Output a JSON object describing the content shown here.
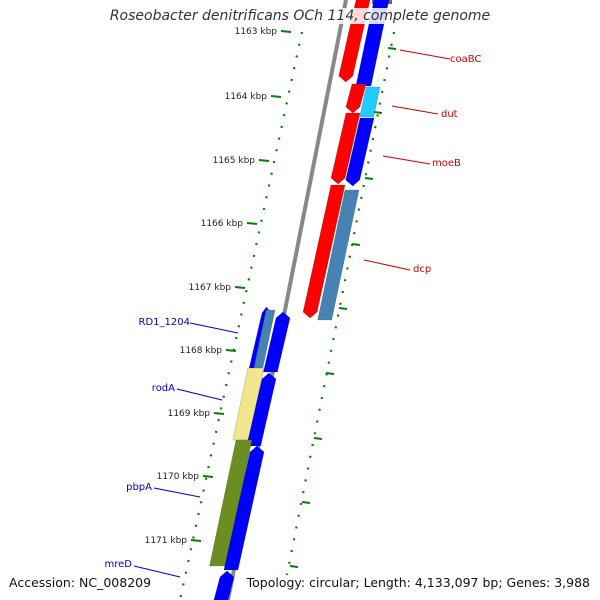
{
  "title": "Roseobacter denitrificans OCh 114, complete genome",
  "accession": "Accession: NC_008209",
  "summary": "Topology: circular; Length: 4,133,097 bp; Genes: 3,988",
  "ticks": [
    {
      "label": "1163 kbp"
    },
    {
      "label": "1164 kbp"
    },
    {
      "label": "1165 kbp"
    },
    {
      "label": "1166 kbp"
    },
    {
      "label": "1167 kbp"
    },
    {
      "label": "1168 kbp"
    },
    {
      "label": "1169 kbp"
    },
    {
      "label": "1170 kbp"
    },
    {
      "label": "1171 kbp"
    }
  ],
  "right_labels": [
    "coaBC",
    "dut",
    "moeB",
    "dcp"
  ],
  "left_labels": [
    "RD1_1204",
    "rodA",
    "pbpA",
    "mreD"
  ],
  "colors": {
    "red_feature": "#ff0000",
    "blue_feature": "#0000ff",
    "cyan_feature": "#22ccff",
    "steelblue_feature": "#4682b4",
    "khaki_feature": "#f0e68c",
    "olive_feature": "#6b8e23",
    "backbone": "#888888",
    "tick_green": "#0a7a0a",
    "label_red": "#cc0000",
    "label_blue": "#0000cc"
  }
}
